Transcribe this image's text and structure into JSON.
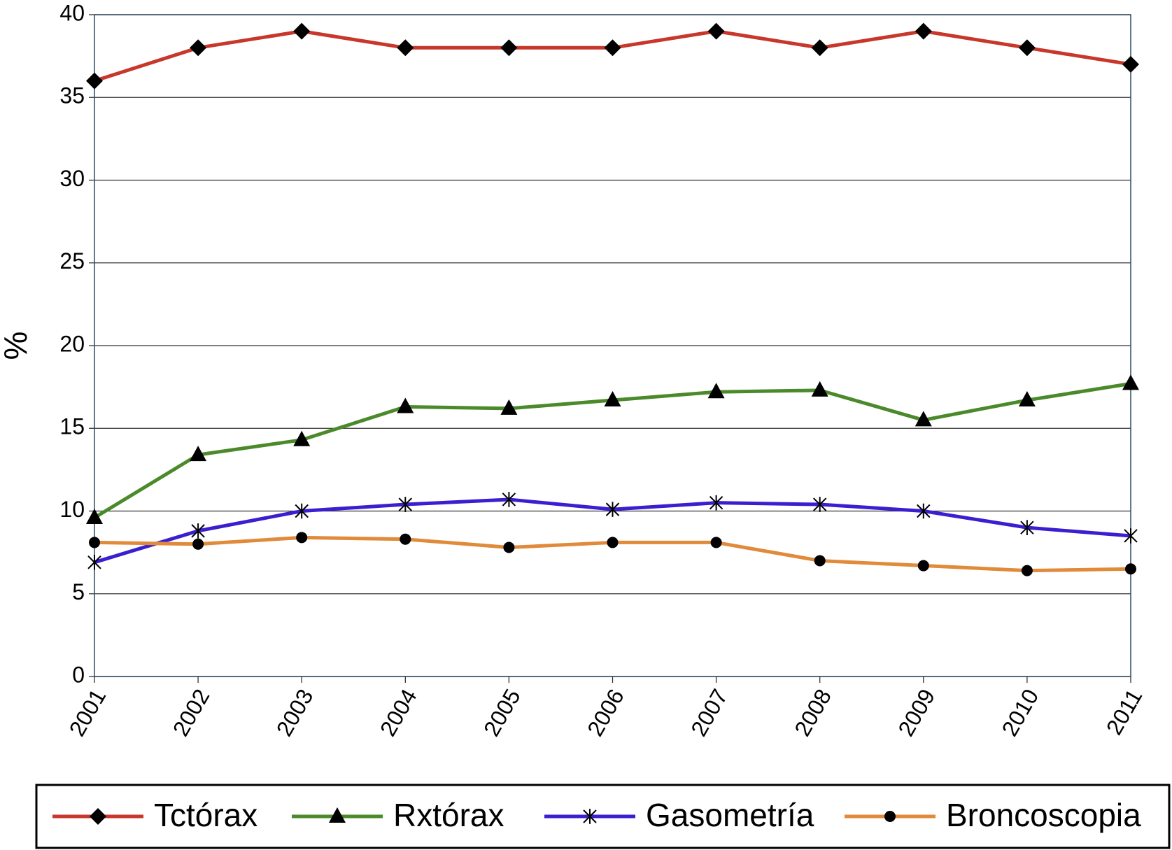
{
  "chart_data": {
    "type": "line",
    "y_label": "%",
    "categories": [
      "2001",
      "2002",
      "2003",
      "2004",
      "2005",
      "2006",
      "2007",
      "2008",
      "2009",
      "2010",
      "2011"
    ],
    "ylim": [
      0,
      40
    ],
    "yticks": [
      0,
      5,
      10,
      15,
      20,
      25,
      30,
      35,
      40
    ],
    "grid": true,
    "legend": "bottom",
    "series": [
      {
        "name": "Tctórax",
        "color": "#c8372b",
        "marker": "diamond",
        "values": [
          36,
          38,
          39,
          38,
          38,
          38,
          39,
          38,
          39,
          38,
          37
        ]
      },
      {
        "name": "Rxtórax",
        "color": "#4b8a2a",
        "marker": "triangle",
        "values": [
          9.6,
          13.4,
          14.3,
          16.3,
          16.2,
          16.7,
          17.2,
          17.3,
          15.5,
          16.7,
          17.7
        ]
      },
      {
        "name": "Gasometría",
        "color": "#3a1fd0",
        "marker": "asterisk",
        "values": [
          6.9,
          8.8,
          10,
          10.4,
          10.7,
          10.1,
          10.5,
          10.4,
          10,
          9,
          8.5
        ]
      },
      {
        "name": "Broncoscopia",
        "color": "#e08a3a",
        "marker": "circle",
        "values": [
          8.1,
          8,
          8.4,
          8.3,
          7.8,
          8.1,
          8.1,
          7,
          6.7,
          6.4,
          6.5
        ]
      }
    ]
  }
}
